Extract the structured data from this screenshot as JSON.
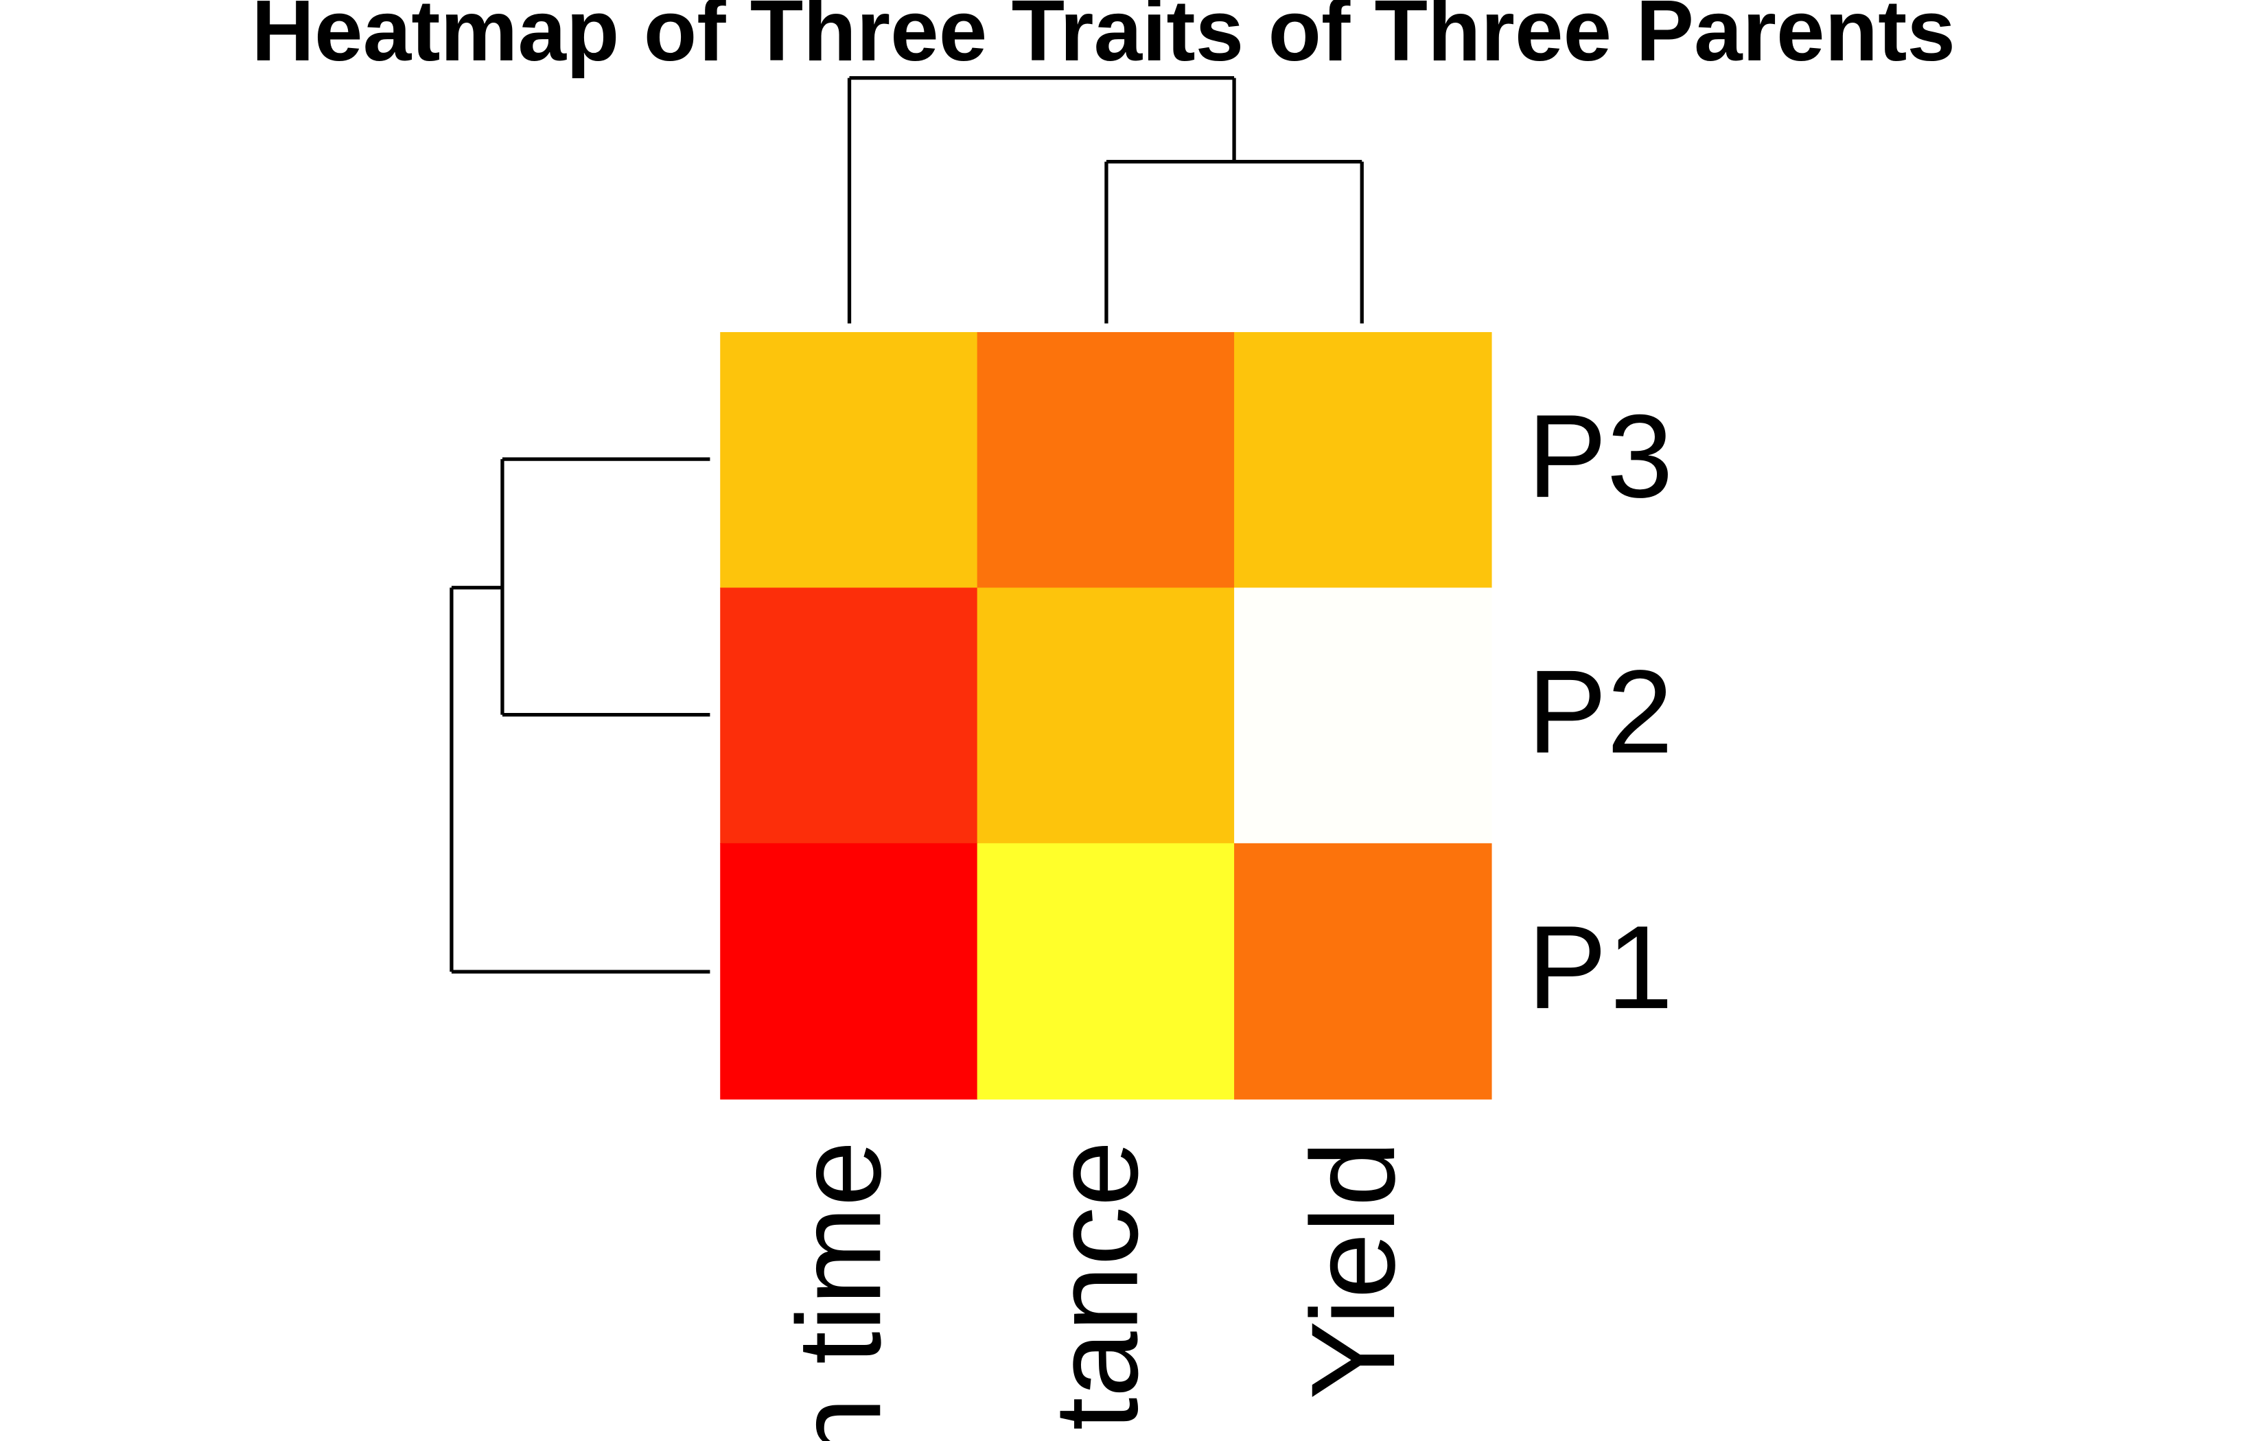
{
  "chart_data": {
    "type": "heatmap",
    "title": "Heatmap of Three Traits of Three Parents",
    "columns": [
      "n time",
      "tance",
      "Yield"
    ],
    "rows": [
      "P3",
      "P2",
      "P1"
    ],
    "colors": [
      [
        "#FDC40C",
        "#FC730C",
        "#FDC40C"
      ],
      [
        "#FC2E0A",
        "#FDC40C",
        "#FFFFFA"
      ],
      [
        "#FF0000",
        "#FFFF2A",
        "#FC730C"
      ]
    ]
  }
}
